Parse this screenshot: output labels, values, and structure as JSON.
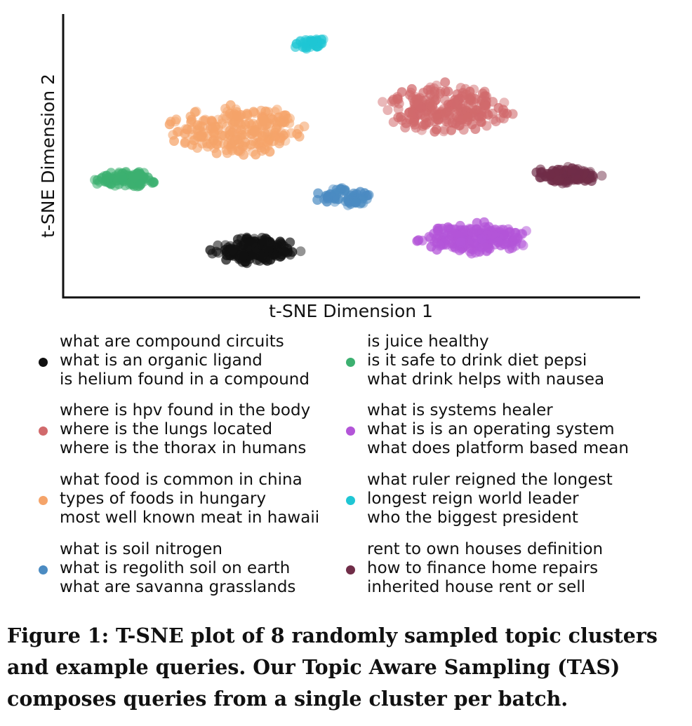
{
  "chart_data": {
    "type": "scatter",
    "xlabel": "t-SNE Dimension 1",
    "ylabel": "t-SNE Dimension 2",
    "xlim": [
      0,
      100
    ],
    "ylim": [
      0,
      100
    ],
    "grid": false,
    "ticks": false,
    "legend_placement": "below",
    "series": [
      {
        "color": "#111111",
        "center": [
          33,
          14
        ],
        "spread": [
          8.5,
          5.5
        ],
        "count": 170,
        "queries": [
          "what are compound circuits",
          "what is an organic ligand",
          "is helium found in a compound"
        ]
      },
      {
        "color": "#d16a6c",
        "center": [
          67,
          67
        ],
        "spread": [
          13,
          10.5
        ],
        "count": 230,
        "queries": [
          "where is hpv found in the body",
          "where is the lungs located",
          "where is the thorax in humans"
        ]
      },
      {
        "color": "#f5a46a",
        "center": [
          30,
          59
        ],
        "spread": [
          13.5,
          10.5
        ],
        "count": 230,
        "queries": [
          "what food is common in china",
          "types of foods in hungary",
          "most well known meat in hawaii"
        ]
      },
      {
        "color": "#4b8bc2",
        "center": [
          48.5,
          34
        ],
        "spread": [
          5.5,
          3.6
        ],
        "count": 70,
        "queries": [
          "what is soil nitrogen",
          "what is regolith soil on earth",
          "what are savanna grasslands"
        ]
      },
      {
        "color": "#3cb070",
        "center": [
          10,
          40.5
        ],
        "spread": [
          6.5,
          3.5
        ],
        "count": 90,
        "queries": [
          "is juice healthy",
          "is it safe to drink diet pepsi",
          "what drink helps with nausea"
        ]
      },
      {
        "color": "#b355d8",
        "center": [
          72,
          18.5
        ],
        "spread": [
          11,
          6.5
        ],
        "count": 210,
        "queries": [
          "what is systems healer",
          "what is is an operating system",
          "what does platform based mean"
        ]
      },
      {
        "color": "#1fc6d4",
        "center": [
          43,
          91.5
        ],
        "spread": [
          3.8,
          2.2
        ],
        "count": 35,
        "queries": [
          "what ruler reigned the longest",
          "longest reign world leader",
          "who the biggest president"
        ]
      },
      {
        "color": "#702d48",
        "center": [
          88.5,
          42
        ],
        "spread": [
          7,
          3.5
        ],
        "count": 110,
        "queries": [
          "rent to own houses definition",
          "how to finance home repairs",
          "inherited house rent or sell"
        ]
      }
    ]
  },
  "caption": "Figure 1: T-SNE plot of 8 randomly sampled topic clusters and example queries. Our Topic Aware Sampling (TAS) composes queries from a single cluster per batch."
}
